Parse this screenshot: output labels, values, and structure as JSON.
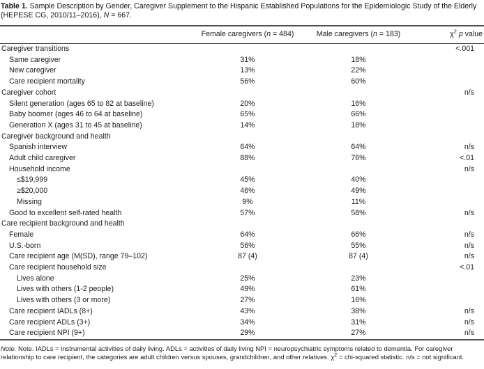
{
  "title": {
    "label": "Table 1.",
    "body": " Sample Description by Gender, Caregiver Supplement to the Hispanic Established Populations for the Epidemiologic Study of the Elderly (HEPESE CG, 2010/11–2016), ",
    "n": "N",
    "tail": " = 667."
  },
  "header": {
    "female": {
      "pre": "Female caregivers (",
      "n": "n",
      "post": " = 484)"
    },
    "male": {
      "pre": "Male caregivers (",
      "n": "n",
      "post": " = 183)"
    },
    "pvalue": {
      "chi": "χ",
      "sup": "2",
      "p": " p",
      "rest": " value"
    }
  },
  "table": {
    "rows": [
      {
        "label": "Caregiver transitions",
        "indent": 0,
        "female": "",
        "male": "",
        "p": "<.001"
      },
      {
        "label": "Same caregiver",
        "indent": 1,
        "female": "31%",
        "male": "18%",
        "p": ""
      },
      {
        "label": "New caregiver",
        "indent": 1,
        "female": "13%",
        "male": "22%",
        "p": ""
      },
      {
        "label": "Care recipient mortality",
        "indent": 1,
        "female": "56%",
        "male": "60%",
        "p": ""
      },
      {
        "label": "Caregiver cohort",
        "indent": 0,
        "female": "",
        "male": "",
        "p": "n/s"
      },
      {
        "label": "Silent generation (ages 65 to 82 at baseline)",
        "indent": 1,
        "female": "20%",
        "male": "16%",
        "p": ""
      },
      {
        "label": "Baby boomer (ages 46 to 64 at baseline)",
        "indent": 1,
        "female": "65%",
        "male": "66%",
        "p": ""
      },
      {
        "label": "Generation X (ages 31 to 45 at baseline)",
        "indent": 1,
        "female": "14%",
        "male": "18%",
        "p": ""
      },
      {
        "label": "Caregiver background and health",
        "indent": 0,
        "female": "",
        "male": "",
        "p": ""
      },
      {
        "label": "Spanish interview",
        "indent": 1,
        "female": "64%",
        "male": "64%",
        "p": "n/s"
      },
      {
        "label": "Adult child caregiver",
        "indent": 1,
        "female": "88%",
        "male": "76%",
        "p": "<.01"
      },
      {
        "label": "Household income",
        "indent": 1,
        "female": "",
        "male": "",
        "p": "n/s"
      },
      {
        "label": "≤$19,999",
        "indent": 2,
        "female": "45%",
        "male": "40%",
        "p": ""
      },
      {
        "label": "≥$20,000",
        "indent": 2,
        "female": "46%",
        "male": "49%",
        "p": ""
      },
      {
        "label": "Missing",
        "indent": 2,
        "female": "9%",
        "male": "11%",
        "p": ""
      },
      {
        "label": "Good to excellent self-rated health",
        "indent": 1,
        "female": "57%",
        "male": "58%",
        "p": "n/s"
      },
      {
        "label": "Care recipient background and health",
        "indent": 0,
        "female": "",
        "male": "",
        "p": ""
      },
      {
        "label": "Female",
        "indent": 1,
        "female": "64%",
        "male": "66%",
        "p": "n/s"
      },
      {
        "label": "U.S.-born",
        "indent": 1,
        "female": "56%",
        "male": "55%",
        "p": "n/s"
      },
      {
        "label": "Care recipient age (M(SD), range 79–102)",
        "indent": 1,
        "female": "87 (4)",
        "male": "87 (4)",
        "p": "n/s"
      },
      {
        "label": "Care recipient household size",
        "indent": 1,
        "female": "",
        "male": "",
        "p": "<.01"
      },
      {
        "label": "Lives alone",
        "indent": 2,
        "female": "25%",
        "male": "23%",
        "p": ""
      },
      {
        "label": "Lives with others (1-2 people)",
        "indent": 2,
        "female": "49%",
        "male": "61%",
        "p": ""
      },
      {
        "label": "Lives with others (3 or more)",
        "indent": 2,
        "female": "27%",
        "male": "16%",
        "p": ""
      },
      {
        "label": "Care recipient IADLs (8+)",
        "indent": 1,
        "female": "43%",
        "male": "38%",
        "p": "n/s"
      },
      {
        "label": "Care recipient ADLs (3+)",
        "indent": 1,
        "female": "34%",
        "male": "31%",
        "p": "n/s"
      },
      {
        "label": "Care recipient NPI (9+)",
        "indent": 1,
        "female": "29%",
        "male": "27%",
        "p": "n/s"
      }
    ]
  },
  "footnote": {
    "note_label": "Note.",
    "text1": " Note. IADLs = instrumental activities of daily living. ADLs = activities of daily living NPI = neuropsychiatric symptoms related to dementia. For caregiver relationship to care recipient, the categories are adult children versus spouses, grandchildren, and other relatives. ",
    "chi": "χ",
    "chi_sup": "2",
    "text2": " = chi-squared statistic. n/s = not significant."
  },
  "colors": {
    "rule": "#4f4f4f",
    "text": "#1c1c1c",
    "background": "#ffffff"
  }
}
